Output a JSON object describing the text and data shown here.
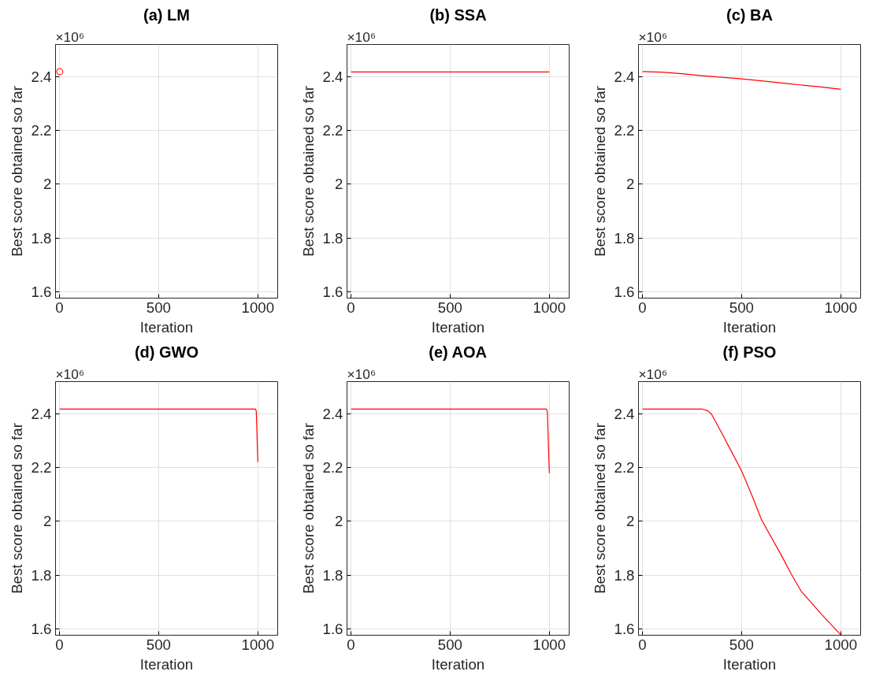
{
  "chart_data": [
    {
      "type": "scatter",
      "title": "(a) LM",
      "xlabel": "Iteration",
      "ylabel": "Best score obtained so far",
      "annotations": [
        "×10⁶"
      ],
      "marker": "circle",
      "grid": true,
      "xlim": [
        -20,
        1100
      ],
      "xticks": [
        0,
        500,
        1000
      ],
      "ylim": [
        1.576,
        2.52
      ],
      "yticks": [
        1.6,
        1.8,
        2,
        2.2,
        2.4
      ],
      "series": [
        {
          "color": "#ff0000",
          "x": [
            1
          ],
          "values": [
            2.419
          ]
        }
      ]
    },
    {
      "type": "line",
      "title": "(b) SSA",
      "xlabel": "Iteration",
      "ylabel": "Best score obtained so far",
      "annotations": [
        "×10⁶"
      ],
      "grid": true,
      "xlim": [
        -20,
        1100
      ],
      "xticks": [
        0,
        500,
        1000
      ],
      "ylim": [
        1.576,
        2.52
      ],
      "yticks": [
        1.6,
        1.8,
        2,
        2.2,
        2.4
      ],
      "series": [
        {
          "color": "#ff0000",
          "x": [
            1,
            1000
          ],
          "values": [
            2.418,
            2.418
          ]
        }
      ]
    },
    {
      "type": "line",
      "title": "(c) BA",
      "xlabel": "Iteration",
      "ylabel": "Best score obtained so far",
      "annotations": [
        "×10⁶"
      ],
      "grid": true,
      "xlim": [
        -20,
        1100
      ],
      "xticks": [
        0,
        500,
        1000
      ],
      "ylim": [
        1.576,
        2.52
      ],
      "yticks": [
        1.6,
        1.8,
        2,
        2.2,
        2.4
      ],
      "series": [
        {
          "color": "#ff0000",
          "x": [
            1,
            100,
            200,
            300,
            400,
            500,
            600,
            750,
            900,
            1000
          ],
          "values": [
            2.419,
            2.417,
            2.411,
            2.404,
            2.398,
            2.392,
            2.385,
            2.373,
            2.362,
            2.353
          ]
        }
      ]
    },
    {
      "type": "line",
      "title": "(d) GWO",
      "xlabel": "Iteration",
      "ylabel": "Best score obtained so far",
      "annotations": [
        "×10⁶"
      ],
      "grid": true,
      "xlim": [
        -20,
        1100
      ],
      "xticks": [
        0,
        500,
        1000
      ],
      "ylim": [
        1.576,
        2.52
      ],
      "yticks": [
        1.6,
        1.8,
        2,
        2.2,
        2.4
      ],
      "series": [
        {
          "color": "#ff0000",
          "x": [
            1,
            988,
            992,
            1000
          ],
          "values": [
            2.418,
            2.418,
            2.41,
            2.22
          ]
        }
      ]
    },
    {
      "type": "line",
      "title": "(e) AOA",
      "xlabel": "Iteration",
      "ylabel": "Best score obtained so far",
      "annotations": [
        "×10⁶"
      ],
      "grid": true,
      "xlim": [
        -20,
        1100
      ],
      "xticks": [
        0,
        500,
        1000
      ],
      "ylim": [
        1.576,
        2.52
      ],
      "yticks": [
        1.6,
        1.8,
        2,
        2.2,
        2.4
      ],
      "series": [
        {
          "color": "#ff0000",
          "x": [
            1,
            985,
            990,
            1000
          ],
          "values": [
            2.418,
            2.418,
            2.41,
            2.179
          ]
        }
      ]
    },
    {
      "type": "line",
      "title": "(f) PSO",
      "xlabel": "Iteration",
      "ylabel": "Best score obtained so far",
      "annotations": [
        "×10⁶"
      ],
      "grid": true,
      "xlim": [
        -20,
        1100
      ],
      "xticks": [
        0,
        500,
        1000
      ],
      "ylim": [
        1.576,
        2.52
      ],
      "yticks": [
        1.6,
        1.8,
        2,
        2.2,
        2.4
      ],
      "series": [
        {
          "color": "#ff0000",
          "x": [
            1,
            300,
            330,
            350,
            400,
            450,
            500,
            550,
            600,
            700,
            750,
            800,
            900,
            1000
          ],
          "values": [
            2.418,
            2.418,
            2.411,
            2.397,
            2.328,
            2.258,
            2.187,
            2.1,
            2.006,
            1.874,
            1.804,
            1.74,
            1.656,
            1.577
          ]
        }
      ]
    }
  ]
}
